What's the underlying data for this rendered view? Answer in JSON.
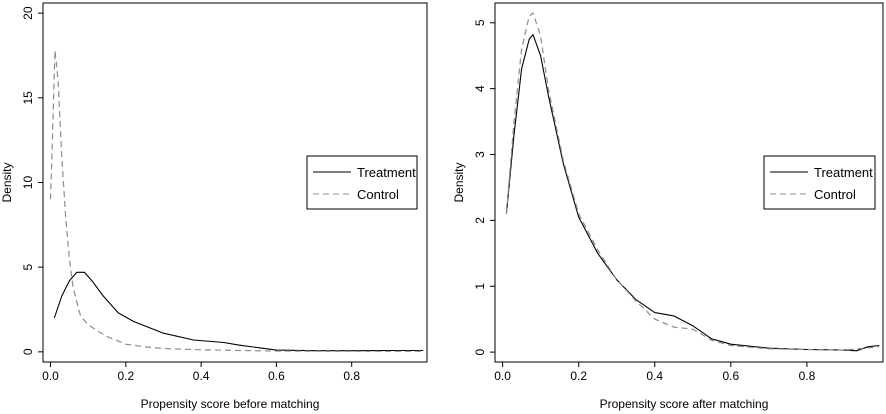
{
  "chart_data": [
    {
      "type": "line",
      "xlabel": "Propensity score before matching",
      "ylabel": "Density",
      "xlim": [
        -0.02,
        1.0
      ],
      "ylim": [
        -0.6,
        20.6
      ],
      "xticks": [
        0.0,
        0.2,
        0.4,
        0.6,
        0.8
      ],
      "xtick_labels": [
        "0.0",
        "0.2",
        "0.4",
        "0.6",
        "0.8"
      ],
      "yticks": [
        0,
        5,
        10,
        15,
        20
      ],
      "ytick_labels": [
        "0",
        "5",
        "10",
        "15",
        "20"
      ],
      "legend": {
        "position": "middle-right",
        "entries": [
          "Treatment",
          "Control"
        ]
      },
      "grid": false,
      "series": [
        {
          "name": "Treatment",
          "style": "solid",
          "x": [
            0.01,
            0.03,
            0.05,
            0.07,
            0.09,
            0.11,
            0.14,
            0.18,
            0.22,
            0.3,
            0.38,
            0.46,
            0.5,
            0.55,
            0.6,
            0.7,
            0.8,
            0.9,
            0.99
          ],
          "y": [
            2.0,
            3.3,
            4.2,
            4.7,
            4.7,
            4.2,
            3.3,
            2.3,
            1.8,
            1.1,
            0.7,
            0.55,
            0.4,
            0.25,
            0.1,
            0.07,
            0.07,
            0.08,
            0.08
          ]
        },
        {
          "name": "Control",
          "style": "dashed",
          "x": [
            0.0,
            0.005,
            0.012,
            0.02,
            0.03,
            0.04,
            0.05,
            0.06,
            0.08,
            0.1,
            0.12,
            0.15,
            0.2,
            0.25,
            0.3,
            0.4,
            0.5,
            0.6,
            0.7,
            0.8,
            0.9,
            0.99
          ],
          "y": [
            9.0,
            12.5,
            17.8,
            16.0,
            11.5,
            8.0,
            5.5,
            3.8,
            2.1,
            1.6,
            1.3,
            0.9,
            0.45,
            0.3,
            0.2,
            0.12,
            0.08,
            0.05,
            0.04,
            0.03,
            0.03,
            0.03
          ]
        }
      ]
    },
    {
      "type": "line",
      "xlabel": "Propensity score after matching",
      "ylabel": "Density",
      "xlim": [
        -0.02,
        1.0
      ],
      "ylim": [
        -0.15,
        5.3
      ],
      "xticks": [
        0.0,
        0.2,
        0.4,
        0.6,
        0.8
      ],
      "xtick_labels": [
        "0.0",
        "0.2",
        "0.4",
        "0.6",
        "0.8"
      ],
      "yticks": [
        0,
        1,
        2,
        3,
        4,
        5
      ],
      "ytick_labels": [
        "0",
        "1",
        "2",
        "3",
        "4",
        "5"
      ],
      "legend": {
        "position": "middle-right",
        "entries": [
          "Treatment",
          "Control"
        ]
      },
      "grid": false,
      "series": [
        {
          "name": "Treatment",
          "style": "solid",
          "x": [
            0.01,
            0.03,
            0.05,
            0.07,
            0.08,
            0.1,
            0.12,
            0.16,
            0.2,
            0.25,
            0.3,
            0.35,
            0.4,
            0.45,
            0.5,
            0.55,
            0.6,
            0.7,
            0.8,
            0.9,
            0.93,
            0.96,
            0.99
          ],
          "y": [
            2.1,
            3.3,
            4.3,
            4.75,
            4.82,
            4.5,
            3.9,
            2.85,
            2.05,
            1.5,
            1.1,
            0.8,
            0.6,
            0.55,
            0.4,
            0.2,
            0.12,
            0.06,
            0.04,
            0.03,
            0.02,
            0.08,
            0.1
          ]
        },
        {
          "name": "Control",
          "style": "dashed",
          "x": [
            0.01,
            0.03,
            0.05,
            0.07,
            0.08,
            0.1,
            0.12,
            0.16,
            0.2,
            0.25,
            0.3,
            0.35,
            0.4,
            0.45,
            0.5,
            0.55,
            0.6,
            0.7,
            0.8,
            0.9,
            0.99
          ],
          "y": [
            2.1,
            3.5,
            4.6,
            5.1,
            5.15,
            4.8,
            4.0,
            2.9,
            2.1,
            1.55,
            1.1,
            0.78,
            0.5,
            0.38,
            0.35,
            0.18,
            0.1,
            0.05,
            0.04,
            0.03,
            0.08
          ]
        }
      ]
    }
  ]
}
